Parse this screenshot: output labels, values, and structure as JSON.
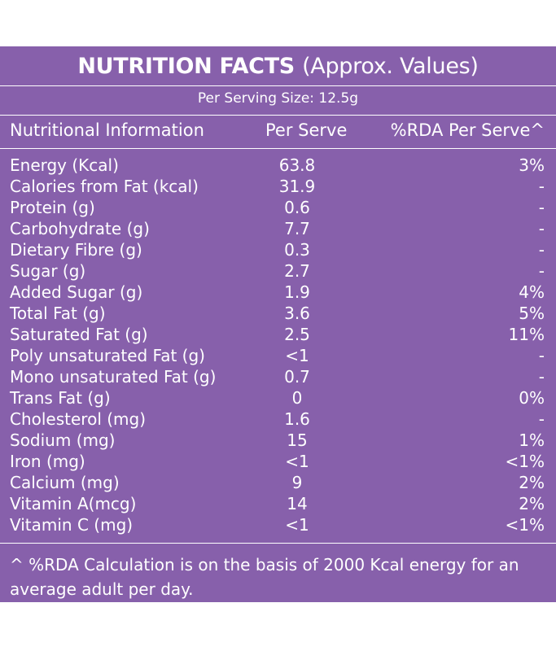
{
  "title": {
    "bold": "NUTRITION FACTS",
    "sub": "(Approx. Values)"
  },
  "serving": "Per Serving Size: 12.5g",
  "columns": {
    "info": "Nutritional Information",
    "serve": "Per Serve",
    "rda": "%RDA Per Serve^"
  },
  "rows": [
    {
      "name": "Energy (Kcal)",
      "serve": "63.8",
      "rda": "3%"
    },
    {
      "name": "Calories from Fat (kcal)",
      "serve": "31.9",
      "rda": "-"
    },
    {
      "name": "Protein (g)",
      "serve": "0.6",
      "rda": "-"
    },
    {
      "name": "Carbohydrate (g)",
      "serve": "7.7",
      "rda": "-"
    },
    {
      "name": "Dietary Fibre (g)",
      "serve": "0.3",
      "rda": "-"
    },
    {
      "name": "Sugar (g)",
      "serve": "2.7",
      "rda": "-"
    },
    {
      "name": "Added Sugar (g)",
      "serve": "1.9",
      "rda": "4%"
    },
    {
      "name": "Total Fat (g)",
      "serve": "3.6",
      "rda": "5%"
    },
    {
      "name": "Saturated Fat (g)",
      "serve": "2.5",
      "rda": "11%"
    },
    {
      "name": "Poly unsaturated Fat (g)",
      "serve": "<1",
      "rda": "-"
    },
    {
      "name": "Mono unsaturated Fat (g)",
      "serve": "0.7",
      "rda": "-"
    },
    {
      "name": "Trans Fat (g)",
      "serve": "0",
      "rda": "0%"
    },
    {
      "name": "Cholesterol (mg)",
      "serve": "1.6",
      "rda": "-"
    },
    {
      "name": "Sodium (mg)",
      "serve": "15",
      "rda": "1%"
    },
    {
      "name": "Iron (mg)",
      "serve": "<1",
      "rda": "<1%"
    },
    {
      "name": "Calcium (mg)",
      "serve": "9",
      "rda": "2%"
    },
    {
      "name": "Vitamin A(mcg)",
      "serve": "14",
      "rda": "2%"
    },
    {
      "name": "Vitamin C (mg)",
      "serve": "<1",
      "rda": "<1%"
    }
  ],
  "footnote": "^ %RDA Calculation is on the basis of 2000 Kcal energy for an average adult per day.",
  "colors": {
    "panel": "#8760ab",
    "text": "#ffffff"
  }
}
